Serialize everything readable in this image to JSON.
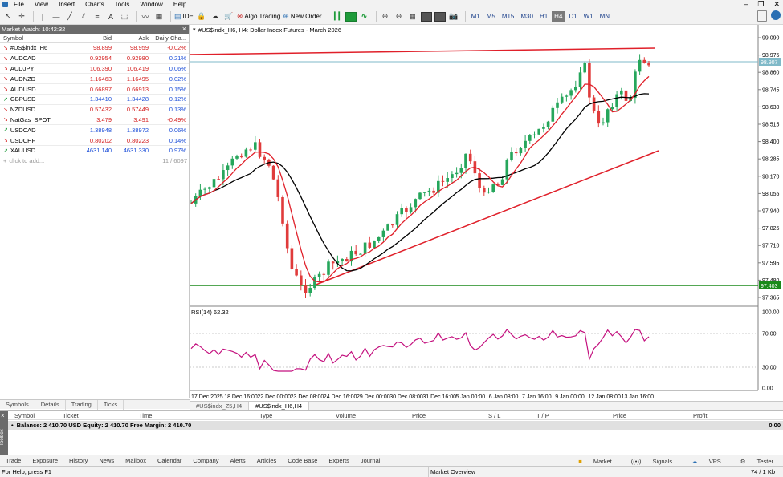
{
  "menu": [
    "File",
    "View",
    "Insert",
    "Charts",
    "Tools",
    "Window",
    "Help"
  ],
  "toolbar": {
    "ide": "IDE",
    "algo": "Algo Trading",
    "new_order": "New Order",
    "timeframes": [
      "M1",
      "M5",
      "M15",
      "M30",
      "H1",
      "H4",
      "D1",
      "W1",
      "MN"
    ],
    "active_tf": "H4",
    "ide_icon": "ide-icon",
    "algo_icon": "algo-trading-icon",
    "order_icon": "new-order-icon"
  },
  "market_watch": {
    "title": "Market Watch: 10:42:32",
    "headers": {
      "symbol": "Symbol",
      "bid": "Bid",
      "ask": "Ask",
      "change": "Daily Cha..."
    },
    "rows": [
      {
        "sym": "#US$indx_H6",
        "bid": "98.899",
        "ask": "98.959",
        "chg": "-0.02%",
        "dir": "dn"
      },
      {
        "sym": "AUDCAD",
        "bid": "0.92954",
        "ask": "0.92980",
        "chg": "0.21%",
        "dir": "dn"
      },
      {
        "sym": "AUDJPY",
        "bid": "106.390",
        "ask": "106.419",
        "chg": "0.06%",
        "dir": "dn"
      },
      {
        "sym": "AUDNZD",
        "bid": "1.16463",
        "ask": "1.16495",
        "chg": "0.02%",
        "dir": "dn"
      },
      {
        "sym": "AUDUSD",
        "bid": "0.66897",
        "ask": "0.66913",
        "chg": "0.15%",
        "dir": "dn"
      },
      {
        "sym": "GBPUSD",
        "bid": "1.34410",
        "ask": "1.34428",
        "chg": "0.12%",
        "dir": "up"
      },
      {
        "sym": "NZDUSD",
        "bid": "0.57432",
        "ask": "0.57449",
        "chg": "0.13%",
        "dir": "dn"
      },
      {
        "sym": "NatGas_SPOT",
        "bid": "3.479",
        "ask": "3.491",
        "chg": "-0.49%",
        "dir": "dn"
      },
      {
        "sym": "USDCAD",
        "bid": "1.38948",
        "ask": "1.38972",
        "chg": "0.06%",
        "dir": "up"
      },
      {
        "sym": "USDCHF",
        "bid": "0.80202",
        "ask": "0.80223",
        "chg": "0.14%",
        "dir": "dn"
      },
      {
        "sym": "XAUUSD",
        "bid": "4631.140",
        "ask": "4631.330",
        "chg": "0.97%",
        "dir": "up"
      }
    ],
    "add_text": "click to add...",
    "count": "11 / 6097"
  },
  "left_tabs": [
    "Symbols",
    "Details",
    "Trading",
    "Ticks"
  ],
  "chart": {
    "title": "#US$indx_H6, H4:  Dollar Index Futures - March 2026",
    "price_ticks": [
      "99.090",
      "98.975",
      "98.860",
      "98.745",
      "98.630",
      "98.515",
      "98.400",
      "98.285",
      "98.170",
      "98.055",
      "97.940",
      "97.825",
      "97.710",
      "97.595",
      "97.480",
      "97.365"
    ],
    "price_label_high": "98.907",
    "price_label_low": "97.403",
    "rsi_label": "RSI(14) 62.32",
    "rsi_ticks": [
      "100.00",
      "70.00",
      "30.00",
      "0.00"
    ],
    "time_ticks": [
      "17 Dec 2025",
      "18 Dec 16:00",
      "22 Dec 00:00",
      "23 Dec 08:00",
      "24 Dec 16:00",
      "29 Dec 00:00",
      "30 Dec 08:00",
      "31 Dec 16:00",
      "5 Jan 00:00",
      "6 Jan 08:00",
      "7 Jan 16:00",
      "9 Jan 00:00",
      "12 Jan 08:00",
      "13 Jan 16:00"
    ],
    "colors": {
      "bull": "#26a65b",
      "bear": "#e03b3b",
      "ma_fast": "#e0202a",
      "ma_slow": "#000000",
      "rsi": "#c4127f",
      "trend": "#e0202a",
      "support": "#1a8a1a",
      "bid_line": "#7fb9c8"
    }
  },
  "chart_tabs": [
    "#US$indx_Z5,H4",
    "#US$indx_H6,H4"
  ],
  "terminal": {
    "headers": [
      "Symbol",
      "Ticket",
      "Time",
      "Type",
      "Volume",
      "Price",
      "S / L",
      "T / P",
      "Price",
      "Profit"
    ],
    "balance_line": "Balance: 2 410.70 USD  Equity: 2 410.70  Free Margin: 2 410.70",
    "balance_value": "0.00",
    "toolbox": "Toolbox"
  },
  "bottom_tabs": [
    "Trade",
    "Exposure",
    "History",
    "News",
    "Mailbox",
    "Calendar",
    "Company",
    "Alerts",
    "Articles",
    "Code Base",
    "Experts",
    "Journal"
  ],
  "bottom_right": [
    "Market",
    "Signals",
    "VPS",
    "Tester"
  ],
  "status": {
    "left": "For Help, press F1",
    "mid": "Market Overview",
    "right": "74 / 1 Kb"
  }
}
